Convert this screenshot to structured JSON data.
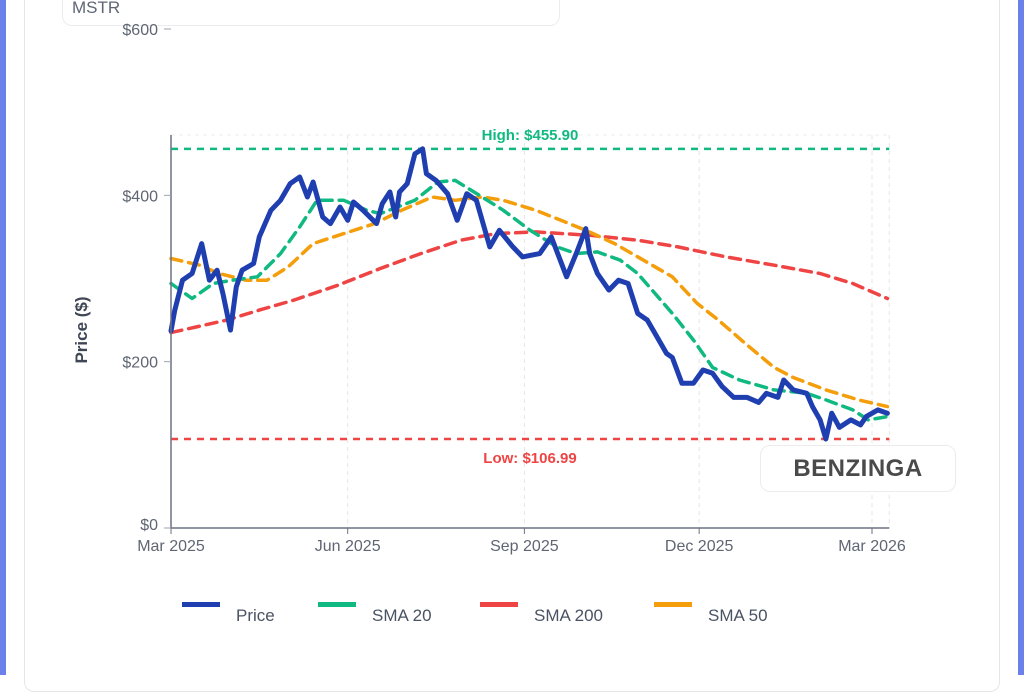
{
  "ticker": "MSTR",
  "brand": "BENZINGA",
  "colors": {
    "price": "#1f3fb0",
    "sma20": "#10b981",
    "sma200": "#ef4444",
    "sma50": "#f59e0b",
    "high": "#10b981",
    "low": "#ef4444"
  },
  "chart_data": {
    "type": "line",
    "ylabel": "Price ($)",
    "xlabel": "",
    "ylim": [
      0,
      600
    ],
    "xlim": [
      "2025-03-01",
      "2026-03-10"
    ],
    "y_ticks": [
      {
        "v": 0,
        "label": "$0"
      },
      {
        "v": 200,
        "label": "$200"
      },
      {
        "v": 400,
        "label": "$400"
      },
      {
        "v": 600,
        "label": "$600"
      }
    ],
    "x_ticks": [
      {
        "d": "2025-03-01",
        "label": "Mar 2025"
      },
      {
        "d": "2025-06-01",
        "label": "Jun 2025"
      },
      {
        "d": "2025-09-01",
        "label": "Sep 2025"
      },
      {
        "d": "2025-12-01",
        "label": "Dec 2025"
      },
      {
        "d": "2026-03-01",
        "label": "Mar 2026"
      }
    ],
    "grid": "vertical dashed",
    "legend_position": "bottom",
    "annotations": [
      {
        "name": "high",
        "value": 455.9,
        "label": "High: $455.90"
      },
      {
        "name": "low",
        "value": 106.99,
        "label": "Low: $106.99"
      }
    ],
    "series": [
      {
        "name": "Price",
        "style": "solid",
        "points": [
          [
            "2025-03-01",
            237
          ],
          [
            "2025-03-03",
            262
          ],
          [
            "2025-03-07",
            298
          ],
          [
            "2025-03-12",
            306
          ],
          [
            "2025-03-17",
            342
          ],
          [
            "2025-03-21",
            298
          ],
          [
            "2025-03-25",
            310
          ],
          [
            "2025-03-28",
            282
          ],
          [
            "2025-04-01",
            238
          ],
          [
            "2025-04-04",
            290
          ],
          [
            "2025-04-07",
            310
          ],
          [
            "2025-04-13",
            318
          ],
          [
            "2025-04-16",
            350
          ],
          [
            "2025-04-22",
            382
          ],
          [
            "2025-04-27",
            394
          ],
          [
            "2025-05-02",
            414
          ],
          [
            "2025-05-07",
            422
          ],
          [
            "2025-05-11",
            398
          ],
          [
            "2025-05-14",
            416
          ],
          [
            "2025-05-19",
            374
          ],
          [
            "2025-05-23",
            366
          ],
          [
            "2025-05-28",
            386
          ],
          [
            "2025-06-01",
            370
          ],
          [
            "2025-06-04",
            392
          ],
          [
            "2025-06-09",
            382
          ],
          [
            "2025-06-16",
            366
          ],
          [
            "2025-06-19",
            390
          ],
          [
            "2025-06-23",
            404
          ],
          [
            "2025-06-26",
            374
          ],
          [
            "2025-06-28",
            404
          ],
          [
            "2025-07-02",
            414
          ],
          [
            "2025-07-06",
            450
          ],
          [
            "2025-07-10",
            456
          ],
          [
            "2025-07-12",
            426
          ],
          [
            "2025-07-17",
            418
          ],
          [
            "2025-07-23",
            402
          ],
          [
            "2025-07-28",
            370
          ],
          [
            "2025-08-02",
            402
          ],
          [
            "2025-08-07",
            394
          ],
          [
            "2025-08-14",
            338
          ],
          [
            "2025-08-19",
            358
          ],
          [
            "2025-08-26",
            338
          ],
          [
            "2025-08-31",
            326
          ],
          [
            "2025-09-09",
            330
          ],
          [
            "2025-09-15",
            350
          ],
          [
            "2025-09-23",
            302
          ],
          [
            "2025-09-28",
            330
          ],
          [
            "2025-10-03",
            360
          ],
          [
            "2025-10-05",
            330
          ],
          [
            "2025-10-09",
            306
          ],
          [
            "2025-10-15",
            286
          ],
          [
            "2025-10-20",
            298
          ],
          [
            "2025-10-25",
            294
          ],
          [
            "2025-10-30",
            258
          ],
          [
            "2025-11-04",
            250
          ],
          [
            "2025-11-07",
            238
          ],
          [
            "2025-11-14",
            210
          ],
          [
            "2025-11-17",
            205
          ],
          [
            "2025-11-22",
            174
          ],
          [
            "2025-11-28",
            174
          ],
          [
            "2025-12-03",
            190
          ],
          [
            "2025-12-08",
            186
          ],
          [
            "2025-12-13",
            170
          ],
          [
            "2025-12-19",
            157
          ],
          [
            "2025-12-26",
            157
          ],
          [
            "2026-01-01",
            151
          ],
          [
            "2026-01-05",
            162
          ],
          [
            "2026-01-11",
            157
          ],
          [
            "2026-01-14",
            178
          ],
          [
            "2026-01-19",
            166
          ],
          [
            "2026-01-26",
            162
          ],
          [
            "2026-01-29",
            146
          ],
          [
            "2026-02-02",
            130
          ],
          [
            "2026-02-05",
            107
          ],
          [
            "2026-02-08",
            138
          ],
          [
            "2026-02-12",
            121
          ],
          [
            "2026-02-18",
            130
          ],
          [
            "2026-02-23",
            124
          ],
          [
            "2026-02-26",
            134
          ],
          [
            "2026-03-04",
            142
          ],
          [
            "2026-03-09",
            138
          ]
        ]
      },
      {
        "name": "SMA 20",
        "style": "dashed",
        "points": [
          [
            "2025-03-01",
            294
          ],
          [
            "2025-03-12",
            276
          ],
          [
            "2025-03-23",
            294
          ],
          [
            "2025-04-02",
            298
          ],
          [
            "2025-04-15",
            302
          ],
          [
            "2025-04-27",
            330
          ],
          [
            "2025-05-07",
            362
          ],
          [
            "2025-05-16",
            394
          ],
          [
            "2025-05-30",
            394
          ],
          [
            "2025-06-11",
            382
          ],
          [
            "2025-06-18",
            378
          ],
          [
            "2025-07-06",
            394
          ],
          [
            "2025-07-18",
            416
          ],
          [
            "2025-07-27",
            418
          ],
          [
            "2025-08-10",
            398
          ],
          [
            "2025-08-21",
            382
          ],
          [
            "2025-09-04",
            358
          ],
          [
            "2025-09-18",
            338
          ],
          [
            "2025-09-28",
            330
          ],
          [
            "2025-10-09",
            332
          ],
          [
            "2025-10-21",
            322
          ],
          [
            "2025-10-30",
            306
          ],
          [
            "2025-11-17",
            258
          ],
          [
            "2025-11-28",
            226
          ],
          [
            "2025-12-08",
            193
          ],
          [
            "2025-12-22",
            178
          ],
          [
            "2026-01-09",
            166
          ],
          [
            "2026-01-26",
            162
          ],
          [
            "2026-02-05",
            154
          ],
          [
            "2026-02-19",
            142
          ],
          [
            "2026-02-27",
            130
          ],
          [
            "2026-03-09",
            134
          ]
        ]
      },
      {
        "name": "SMA 200",
        "style": "dashed",
        "points": [
          [
            "2025-03-01",
            235
          ],
          [
            "2025-03-30",
            250
          ],
          [
            "2025-04-16",
            262
          ],
          [
            "2025-05-04",
            274
          ],
          [
            "2025-05-27",
            292
          ],
          [
            "2025-06-18",
            312
          ],
          [
            "2025-07-09",
            330
          ],
          [
            "2025-07-30",
            346
          ],
          [
            "2025-08-17",
            354
          ],
          [
            "2025-09-07",
            356
          ],
          [
            "2025-10-05",
            352
          ],
          [
            "2025-10-30",
            346
          ],
          [
            "2025-11-20",
            338
          ],
          [
            "2025-12-15",
            326
          ],
          [
            "2026-01-09",
            316
          ],
          [
            "2026-02-02",
            306
          ],
          [
            "2026-02-19",
            294
          ],
          [
            "2026-03-09",
            276
          ]
        ]
      },
      {
        "name": "SMA 50",
        "style": "dashed",
        "points": [
          [
            "2025-03-01",
            324
          ],
          [
            "2025-03-16",
            316
          ],
          [
            "2025-03-26",
            306
          ],
          [
            "2025-04-09",
            298
          ],
          [
            "2025-04-20",
            298
          ],
          [
            "2025-05-01",
            314
          ],
          [
            "2025-05-14",
            342
          ],
          [
            "2025-05-30",
            354
          ],
          [
            "2025-06-15",
            366
          ],
          [
            "2025-06-29",
            382
          ],
          [
            "2025-07-15",
            398
          ],
          [
            "2025-07-27",
            394
          ],
          [
            "2025-08-10",
            398
          ],
          [
            "2025-08-21",
            394
          ],
          [
            "2025-09-07",
            382
          ],
          [
            "2025-09-20",
            370
          ],
          [
            "2025-10-03",
            358
          ],
          [
            "2025-10-18",
            342
          ],
          [
            "2025-11-02",
            322
          ],
          [
            "2025-11-17",
            302
          ],
          [
            "2025-11-30",
            270
          ],
          [
            "2025-12-11",
            250
          ],
          [
            "2025-12-25",
            222
          ],
          [
            "2026-01-09",
            193
          ],
          [
            "2026-01-19",
            181
          ],
          [
            "2026-02-05",
            166
          ],
          [
            "2026-02-22",
            154
          ],
          [
            "2026-03-09",
            146
          ]
        ]
      }
    ]
  }
}
